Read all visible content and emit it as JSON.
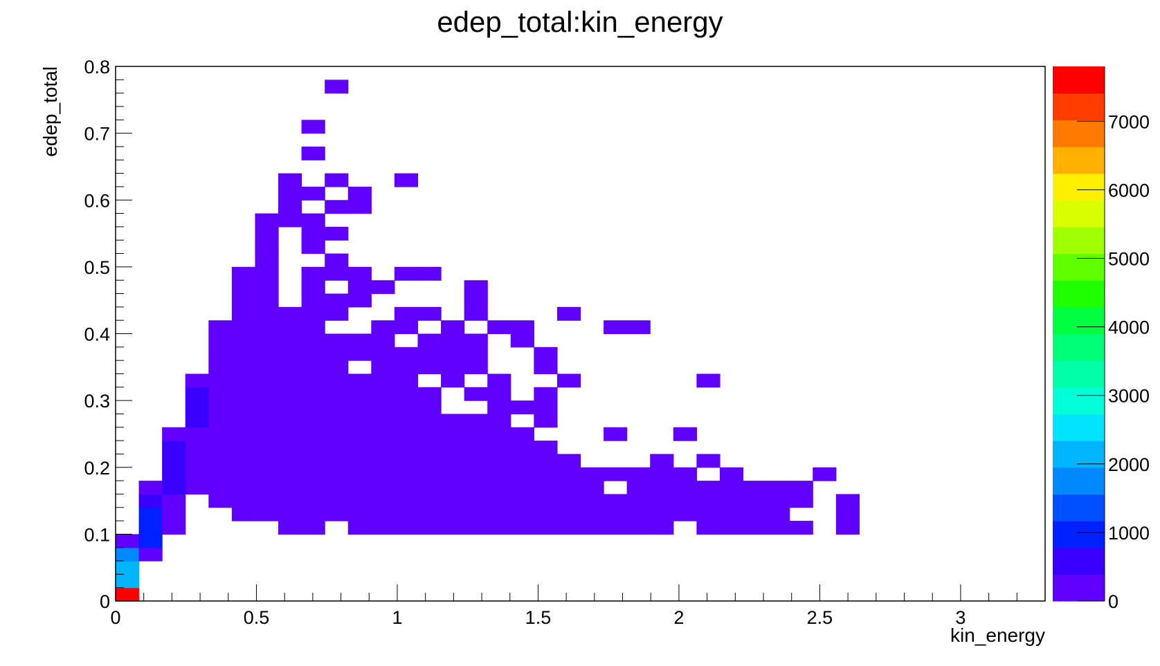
{
  "chart_data": {
    "type": "heatmap",
    "title": "edep_total:kin_energy",
    "xlabel": "kin_energy",
    "ylabel": "edep_total",
    "xlim": [
      0,
      3.3
    ],
    "ylim": [
      0,
      0.8
    ],
    "x_ticks": [
      {
        "value": 0,
        "label": "0"
      },
      {
        "value": 0.5,
        "label": "0.5"
      },
      {
        "value": 1,
        "label": "1"
      },
      {
        "value": 1.5,
        "label": "1.5"
      },
      {
        "value": 2,
        "label": "2"
      },
      {
        "value": 2.5,
        "label": "2.5"
      },
      {
        "value": 3,
        "label": "3"
      }
    ],
    "y_ticks": [
      {
        "value": 0,
        "label": "0"
      },
      {
        "value": 0.1,
        "label": "0.1"
      },
      {
        "value": 0.2,
        "label": "0.2"
      },
      {
        "value": 0.3,
        "label": "0.3"
      },
      {
        "value": 0.4,
        "label": "0.4"
      },
      {
        "value": 0.5,
        "label": "0.5"
      },
      {
        "value": 0.6,
        "label": "0.6"
      },
      {
        "value": 0.7,
        "label": "0.7"
      },
      {
        "value": 0.8,
        "label": "0.8"
      }
    ],
    "palette_range": [
      0,
      7800
    ],
    "palette_ticks": [
      {
        "value": 0,
        "label": "0"
      },
      {
        "value": 1000,
        "label": "1000"
      },
      {
        "value": 2000,
        "label": "2000"
      },
      {
        "value": 3000,
        "label": "3000"
      },
      {
        "value": 4000,
        "label": "4000"
      },
      {
        "value": 5000,
        "label": "5000"
      },
      {
        "value": 6000,
        "label": "6000"
      },
      {
        "value": 7000,
        "label": "7000"
      }
    ],
    "palette_colors": [
      "#6000ff",
      "#3a00ff",
      "#0020ff",
      "#0050ff",
      "#0088ff",
      "#00b4ff",
      "#00e4ff",
      "#00ffd8",
      "#00ffa8",
      "#00ff78",
      "#00ff40",
      "#20ff00",
      "#60ff00",
      "#a0ff00",
      "#d8ff00",
      "#fff000",
      "#ffb000",
      "#ff7800",
      "#ff3c00",
      "#ff0000"
    ],
    "bins": {
      "x_width": 0.0825,
      "y_height": 0.02
    },
    "cells": [
      {
        "x": 0,
        "y": 0,
        "v": 7800
      },
      {
        "x": 0,
        "y": 0.02,
        "v": 2100
      },
      {
        "x": 0,
        "y": 0.04,
        "v": 2000
      },
      {
        "x": 0,
        "y": 0.06,
        "v": 1700
      },
      {
        "x": 0,
        "y": 0.08,
        "v": 300
      },
      {
        "x": 1,
        "y": 0.06,
        "v": 300
      },
      {
        "x": 1,
        "y": 0.08,
        "v": 900
      },
      {
        "x": 1,
        "y": 0.1,
        "v": 1000
      },
      {
        "x": 1,
        "y": 0.12,
        "v": 1000
      },
      {
        "x": 1,
        "y": 0.14,
        "v": 500
      },
      {
        "x": 1,
        "y": 0.16,
        "v": 200
      },
      {
        "x": 2,
        "y": 0.1,
        "v": 200
      },
      {
        "x": 2,
        "y": 0.12,
        "v": 200
      },
      {
        "x": 2,
        "y": 0.14,
        "v": 200
      },
      {
        "x": 2,
        "y": 0.16,
        "v": 600
      },
      {
        "x": 2,
        "y": 0.18,
        "v": 600
      },
      {
        "x": 2,
        "y": 0.2,
        "v": 600
      },
      {
        "x": 2,
        "y": 0.22,
        "v": 600
      },
      {
        "x": 2,
        "y": 0.24,
        "v": 200
      },
      {
        "x": 3,
        "y": 0.26,
        "v": 700
      },
      {
        "x": 3,
        "y": 0.28,
        "v": 700
      },
      {
        "x": 3,
        "y": 0.3,
        "v": 700
      },
      {
        "x": 3,
        "y": 0.32,
        "v": 200
      }
    ],
    "low_count_rows": [
      {
        "y": 0.1,
        "x_ranges": [
          [
            2,
            2
          ],
          [
            7,
            8
          ],
          [
            10,
            23
          ],
          [
            25,
            29
          ],
          [
            31,
            31
          ]
        ]
      },
      {
        "y": 0.12,
        "x_ranges": [
          [
            2,
            2
          ],
          [
            5,
            28
          ],
          [
            31,
            31
          ]
        ]
      },
      {
        "y": 0.14,
        "x_ranges": [
          [
            2,
            2
          ],
          [
            4,
            29
          ],
          [
            31,
            31
          ]
        ]
      },
      {
        "y": 0.16,
        "x_ranges": [
          [
            3,
            20
          ],
          [
            22,
            29
          ]
        ]
      },
      {
        "y": 0.18,
        "x_ranges": [
          [
            3,
            24
          ],
          [
            26,
            26
          ],
          [
            30,
            30
          ]
        ]
      },
      {
        "y": 0.2,
        "x_ranges": [
          [
            3,
            19
          ],
          [
            23,
            23
          ],
          [
            25,
            25
          ]
        ]
      },
      {
        "y": 0.22,
        "x_ranges": [
          [
            3,
            17
          ],
          [
            18,
            18
          ]
        ]
      },
      {
        "y": 0.24,
        "x_ranges": [
          [
            3,
            17
          ],
          [
            21,
            21
          ],
          [
            24,
            24
          ]
        ]
      },
      {
        "y": 0.26,
        "x_ranges": [
          [
            4,
            16
          ],
          [
            18,
            18
          ]
        ]
      },
      {
        "y": 0.28,
        "x_ranges": [
          [
            4,
            13
          ],
          [
            16,
            17
          ],
          [
            18,
            18
          ]
        ]
      },
      {
        "y": 0.3,
        "x_ranges": [
          [
            4,
            13
          ],
          [
            15,
            16
          ],
          [
            18,
            18
          ]
        ]
      },
      {
        "y": 0.32,
        "x_ranges": [
          [
            4,
            12
          ],
          [
            14,
            14
          ],
          [
            16,
            16
          ],
          [
            19,
            19
          ],
          [
            25,
            25
          ]
        ]
      },
      {
        "y": 0.34,
        "x_ranges": [
          [
            4,
            9
          ],
          [
            11,
            15
          ],
          [
            18,
            18
          ]
        ]
      },
      {
        "y": 0.36,
        "x_ranges": [
          [
            4,
            15
          ],
          [
            18,
            18
          ]
        ]
      },
      {
        "y": 0.38,
        "x_ranges": [
          [
            4,
            11
          ],
          [
            13,
            15
          ],
          [
            17,
            17
          ]
        ]
      },
      {
        "y": 0.4,
        "x_ranges": [
          [
            4,
            8
          ],
          [
            11,
            12
          ],
          [
            14,
            14
          ],
          [
            16,
            17
          ],
          [
            21,
            22
          ]
        ]
      },
      {
        "y": 0.42,
        "x_ranges": [
          [
            5,
            9
          ],
          [
            12,
            13
          ],
          [
            15,
            15
          ],
          [
            19,
            19
          ]
        ]
      },
      {
        "y": 0.44,
        "x_ranges": [
          [
            5,
            6
          ],
          [
            8,
            10
          ],
          [
            15,
            15
          ]
        ]
      },
      {
        "y": 0.46,
        "x_ranges": [
          [
            5,
            6
          ],
          [
            8,
            8
          ],
          [
            10,
            11
          ],
          [
            15,
            15
          ]
        ]
      },
      {
        "y": 0.48,
        "x_ranges": [
          [
            5,
            6
          ],
          [
            8,
            9
          ],
          [
            10,
            10
          ],
          [
            12,
            13
          ]
        ]
      },
      {
        "y": 0.5,
        "x_ranges": [
          [
            6,
            6
          ],
          [
            9,
            9
          ]
        ]
      },
      {
        "y": 0.52,
        "x_ranges": [
          [
            6,
            6
          ],
          [
            8,
            8
          ]
        ]
      },
      {
        "y": 0.54,
        "x_ranges": [
          [
            6,
            6
          ],
          [
            8,
            9
          ]
        ]
      },
      {
        "y": 0.56,
        "x_ranges": [
          [
            6,
            8
          ]
        ]
      },
      {
        "y": 0.58,
        "x_ranges": [
          [
            7,
            7
          ],
          [
            9,
            10
          ]
        ]
      },
      {
        "y": 0.6,
        "x_ranges": [
          [
            7,
            8
          ],
          [
            10,
            10
          ]
        ]
      },
      {
        "y": 0.62,
        "x_ranges": [
          [
            7,
            7
          ],
          [
            9,
            9
          ],
          [
            12,
            12
          ]
        ]
      },
      {
        "y": 0.66,
        "x_ranges": [
          [
            8,
            8
          ]
        ]
      },
      {
        "y": 0.7,
        "x_ranges": [
          [
            8,
            8
          ]
        ]
      },
      {
        "y": 0.76,
        "x_ranges": [
          [
            9,
            9
          ]
        ]
      }
    ],
    "low_count_value": 100
  }
}
